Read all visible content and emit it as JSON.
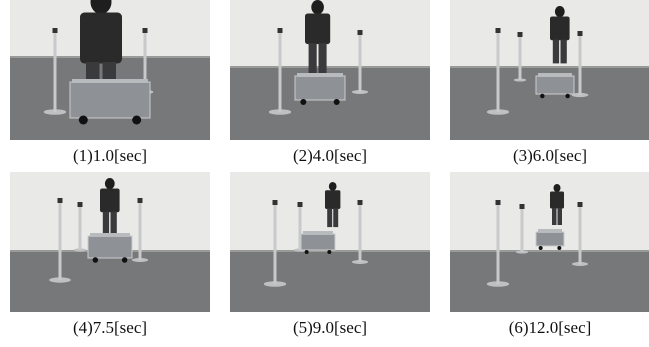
{
  "panels": [
    {
      "caption": "(1)1.0[sec]"
    },
    {
      "caption": "(2)4.0[sec]"
    },
    {
      "caption": "(3)6.0[sec]"
    },
    {
      "caption": "(4)7.5[sec]"
    },
    {
      "caption": "(5)9.0[sec]"
    },
    {
      "caption": "(6)12.0[sec]"
    }
  ]
}
